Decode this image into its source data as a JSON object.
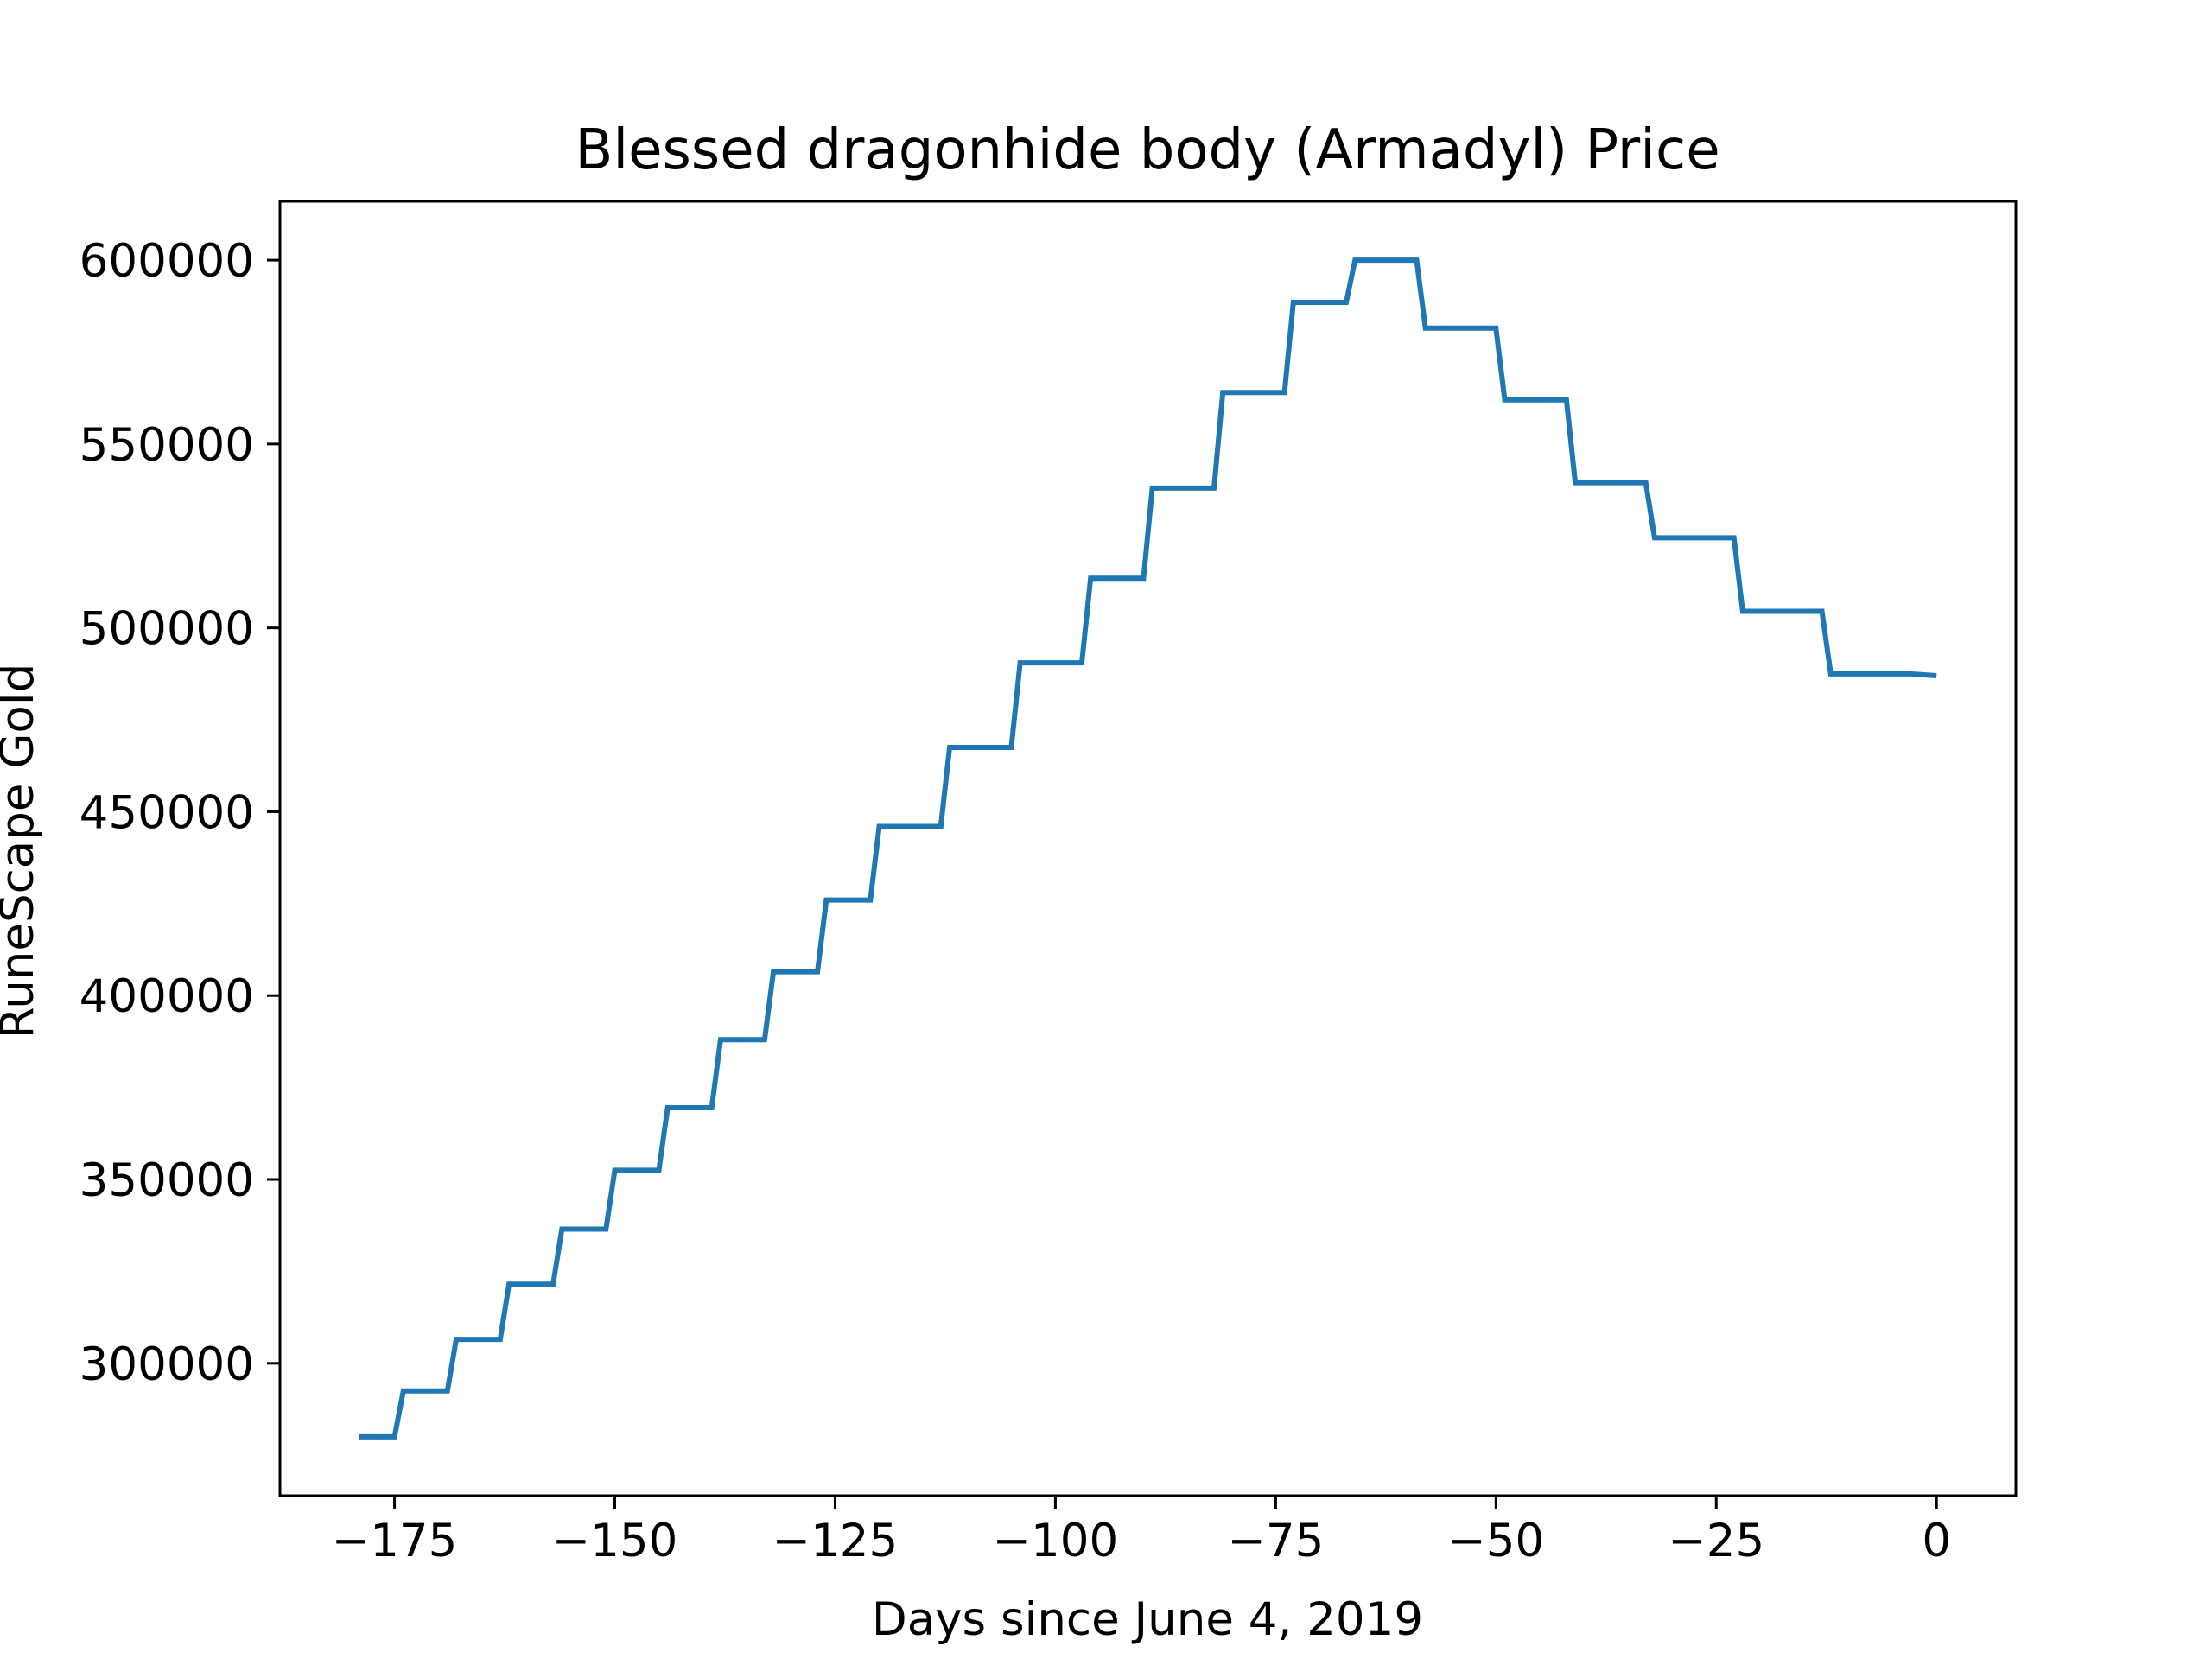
{
  "chart_data": {
    "type": "line",
    "title": "Blessed dragonhide body (Armadyl) Price",
    "xlabel": "Days since June 4, 2019",
    "ylabel": "RuneScape Gold",
    "xlim": [
      -188,
      9
    ],
    "ylim": [
      264000,
      616000
    ],
    "xticks": [
      -175,
      -150,
      -125,
      -100,
      -75,
      -50,
      -25,
      0
    ],
    "xtick_labels": [
      "−175",
      "−150",
      "−125",
      "−100",
      "−75",
      "−50",
      "−25",
      "0"
    ],
    "yticks": [
      300000,
      350000,
      400000,
      450000,
      500000,
      550000,
      600000
    ],
    "ytick_labels": [
      "300000",
      "350000",
      "400000",
      "450000",
      "500000",
      "550000",
      "600000"
    ],
    "grid": false,
    "line_color": "#1f77b4",
    "series": [
      {
        "x": [
          -179,
          -175,
          -174,
          -169,
          -168,
          -163,
          -162,
          -157,
          -156,
          -151,
          -150,
          -145,
          -144,
          -139,
          -138,
          -133,
          -132,
          -127,
          -126,
          -121,
          -120,
          -113,
          -112,
          -105,
          -104,
          -97,
          -96,
          -90,
          -89,
          -82,
          -81,
          -74,
          -73,
          -67,
          -66,
          -59,
          -58,
          -50,
          -49,
          -42,
          -41,
          -33,
          -32,
          -23,
          -22,
          -13,
          -12,
          -3,
          0
        ],
        "y": [
          280000,
          280000,
          292500,
          292500,
          306500,
          306500,
          321500,
          321500,
          336500,
          336500,
          352500,
          352500,
          369500,
          369500,
          388000,
          388000,
          406500,
          406500,
          426000,
          426000,
          446000,
          446000,
          467500,
          467500,
          490500,
          490500,
          513500,
          513500,
          538000,
          538000,
          564000,
          564000,
          588500,
          588500,
          600000,
          600000,
          581500,
          581500,
          562000,
          562000,
          539500,
          539500,
          524500,
          524500,
          504500,
          504500,
          487500,
          487500,
          487000
        ]
      }
    ]
  }
}
